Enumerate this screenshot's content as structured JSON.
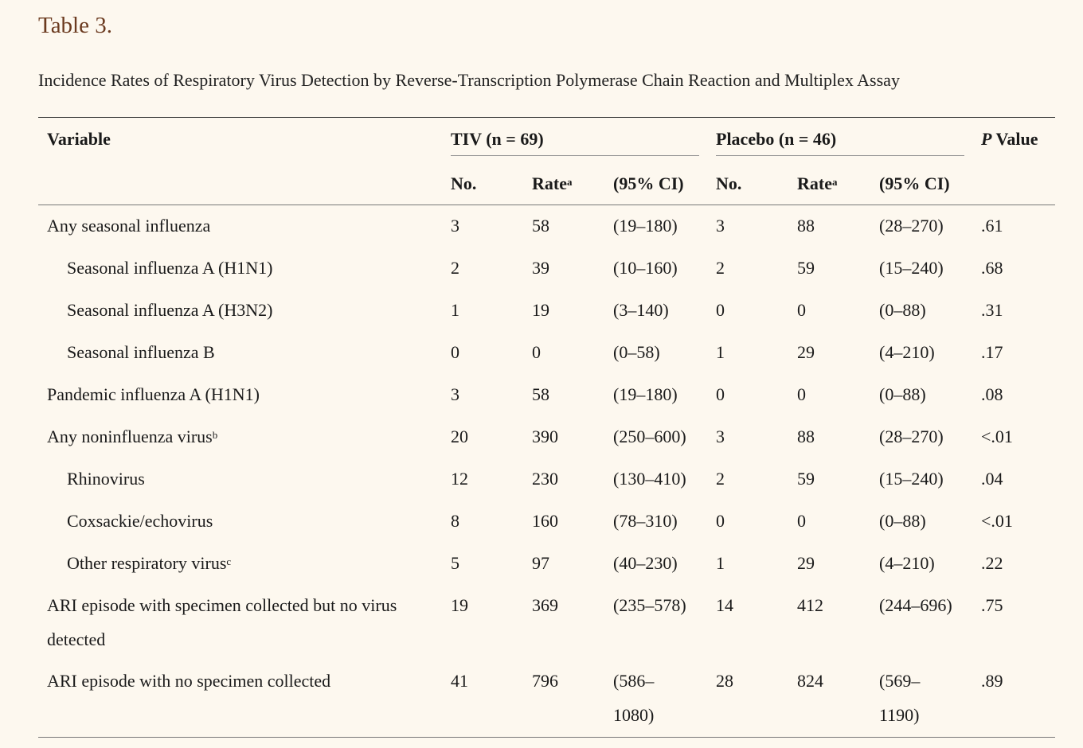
{
  "table_label": "Table 3.",
  "caption": "Incidence Rates of Respiratory Virus Detection by Reverse-Transcription Polymerase Chain Reaction and Multiplex Assay",
  "header": {
    "variable": "Variable",
    "tiv_group": "TIV (n = 69)",
    "placebo_group": "Placebo (n = 46)",
    "p_italic": "P",
    "p_rest": " Value",
    "no": "No.",
    "rate": "Rate",
    "rate_sup": "a",
    "ci": "(95% CI)"
  },
  "rows": [
    {
      "variable": "Any seasonal influenza",
      "sup": "",
      "tiv_no": "3",
      "tiv_rate": "58",
      "tiv_ci": "(19–180)",
      "pl_no": "3",
      "pl_rate": "88",
      "pl_ci": "(28–270)",
      "p": ".61"
    },
    {
      "variable": "Seasonal influenza A (H1N1)",
      "sup": "",
      "tiv_no": "2",
      "tiv_rate": "39",
      "tiv_ci": "(10–160)",
      "pl_no": "2",
      "pl_rate": "59",
      "pl_ci": "(15–240)",
      "p": ".68"
    },
    {
      "variable": "Seasonal influenza A (H3N2)",
      "sup": "",
      "tiv_no": "1",
      "tiv_rate": "19",
      "tiv_ci": "(3–140)",
      "pl_no": "0",
      "pl_rate": "0",
      "pl_ci": "(0–88)",
      "p": ".31"
    },
    {
      "variable": "Seasonal influenza B",
      "sup": "",
      "tiv_no": "0",
      "tiv_rate": "0",
      "tiv_ci": "(0–58)",
      "pl_no": "1",
      "pl_rate": "29",
      "pl_ci": "(4–210)",
      "p": ".17"
    },
    {
      "variable": "Pandemic influenza A (H1N1)",
      "sup": "",
      "tiv_no": "3",
      "tiv_rate": "58",
      "tiv_ci": "(19–180)",
      "pl_no": "0",
      "pl_rate": "0",
      "pl_ci": "(0–88)",
      "p": ".08"
    },
    {
      "variable": "Any noninfluenza virus",
      "sup": "b",
      "tiv_no": "20",
      "tiv_rate": "390",
      "tiv_ci": "(250–600)",
      "pl_no": "3",
      "pl_rate": "88",
      "pl_ci": "(28–270)",
      "p": "<.01"
    },
    {
      "variable": "Rhinovirus",
      "sup": "",
      "tiv_no": "12",
      "tiv_rate": "230",
      "tiv_ci": "(130–410)",
      "pl_no": "2",
      "pl_rate": "59",
      "pl_ci": "(15–240)",
      "p": ".04"
    },
    {
      "variable": "Coxsackie/echovirus",
      "sup": "",
      "tiv_no": "8",
      "tiv_rate": "160",
      "tiv_ci": "(78–310)",
      "pl_no": "0",
      "pl_rate": "0",
      "pl_ci": "(0–88)",
      "p": "<.01"
    },
    {
      "variable": "Other respiratory virus",
      "sup": "c",
      "tiv_no": "5",
      "tiv_rate": "97",
      "tiv_ci": "(40–230)",
      "pl_no": "1",
      "pl_rate": "29",
      "pl_ci": "(4–210)",
      "p": ".22"
    },
    {
      "variable": "ARI episode with specimen collected but no virus detected",
      "sup": "",
      "tiv_no": "19",
      "tiv_rate": "369",
      "tiv_ci": "(235–578)",
      "pl_no": "14",
      "pl_rate": "412",
      "pl_ci": "(244–696)",
      "p": ".75"
    },
    {
      "variable": "ARI episode with no specimen collected",
      "sup": "",
      "tiv_no": "41",
      "tiv_rate": "796",
      "tiv_ci": "(586–1080)",
      "pl_no": "28",
      "pl_rate": "824",
      "pl_ci": "(569–1190)",
      "p": ".89"
    }
  ]
}
